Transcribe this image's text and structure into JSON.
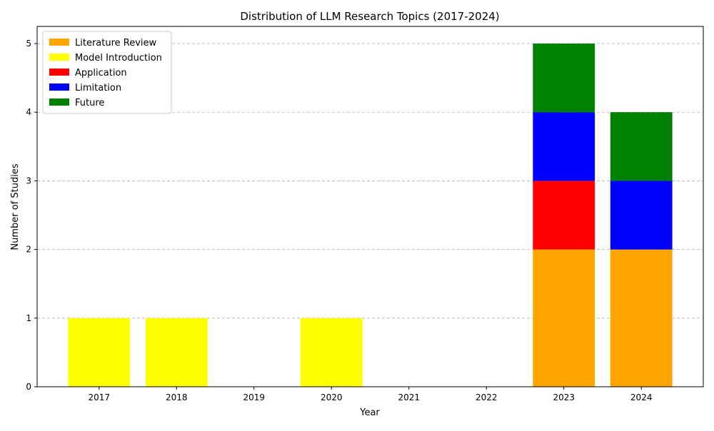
{
  "chart_data": {
    "type": "bar",
    "stacked": true,
    "title": "Distribution of LLM Research Topics (2017-2024)",
    "xlabel": "Year",
    "ylabel": "Number of Studies",
    "categories": [
      "2017",
      "2018",
      "2019",
      "2020",
      "2021",
      "2022",
      "2023",
      "2024"
    ],
    "series": [
      {
        "name": "Literature Review",
        "color": "#FFA500",
        "values": [
          0,
          0,
          0,
          0,
          0,
          0,
          2,
          2
        ]
      },
      {
        "name": "Model Introduction",
        "color": "#FFFF00",
        "values": [
          1,
          1,
          0,
          1,
          0,
          0,
          0,
          0
        ]
      },
      {
        "name": "Application",
        "color": "#FF0000",
        "values": [
          0,
          0,
          0,
          0,
          0,
          0,
          1,
          0
        ]
      },
      {
        "name": "Limitation",
        "color": "#0000FF",
        "values": [
          0,
          0,
          0,
          0,
          0,
          0,
          1,
          1
        ]
      },
      {
        "name": "Future",
        "color": "#008000",
        "values": [
          0,
          0,
          0,
          0,
          0,
          0,
          1,
          1
        ]
      }
    ],
    "ylim": [
      0,
      5.25
    ],
    "yticks": [
      0,
      1,
      2,
      3,
      4,
      5
    ],
    "grid": "y-dashed",
    "legend_position": "top-left"
  }
}
